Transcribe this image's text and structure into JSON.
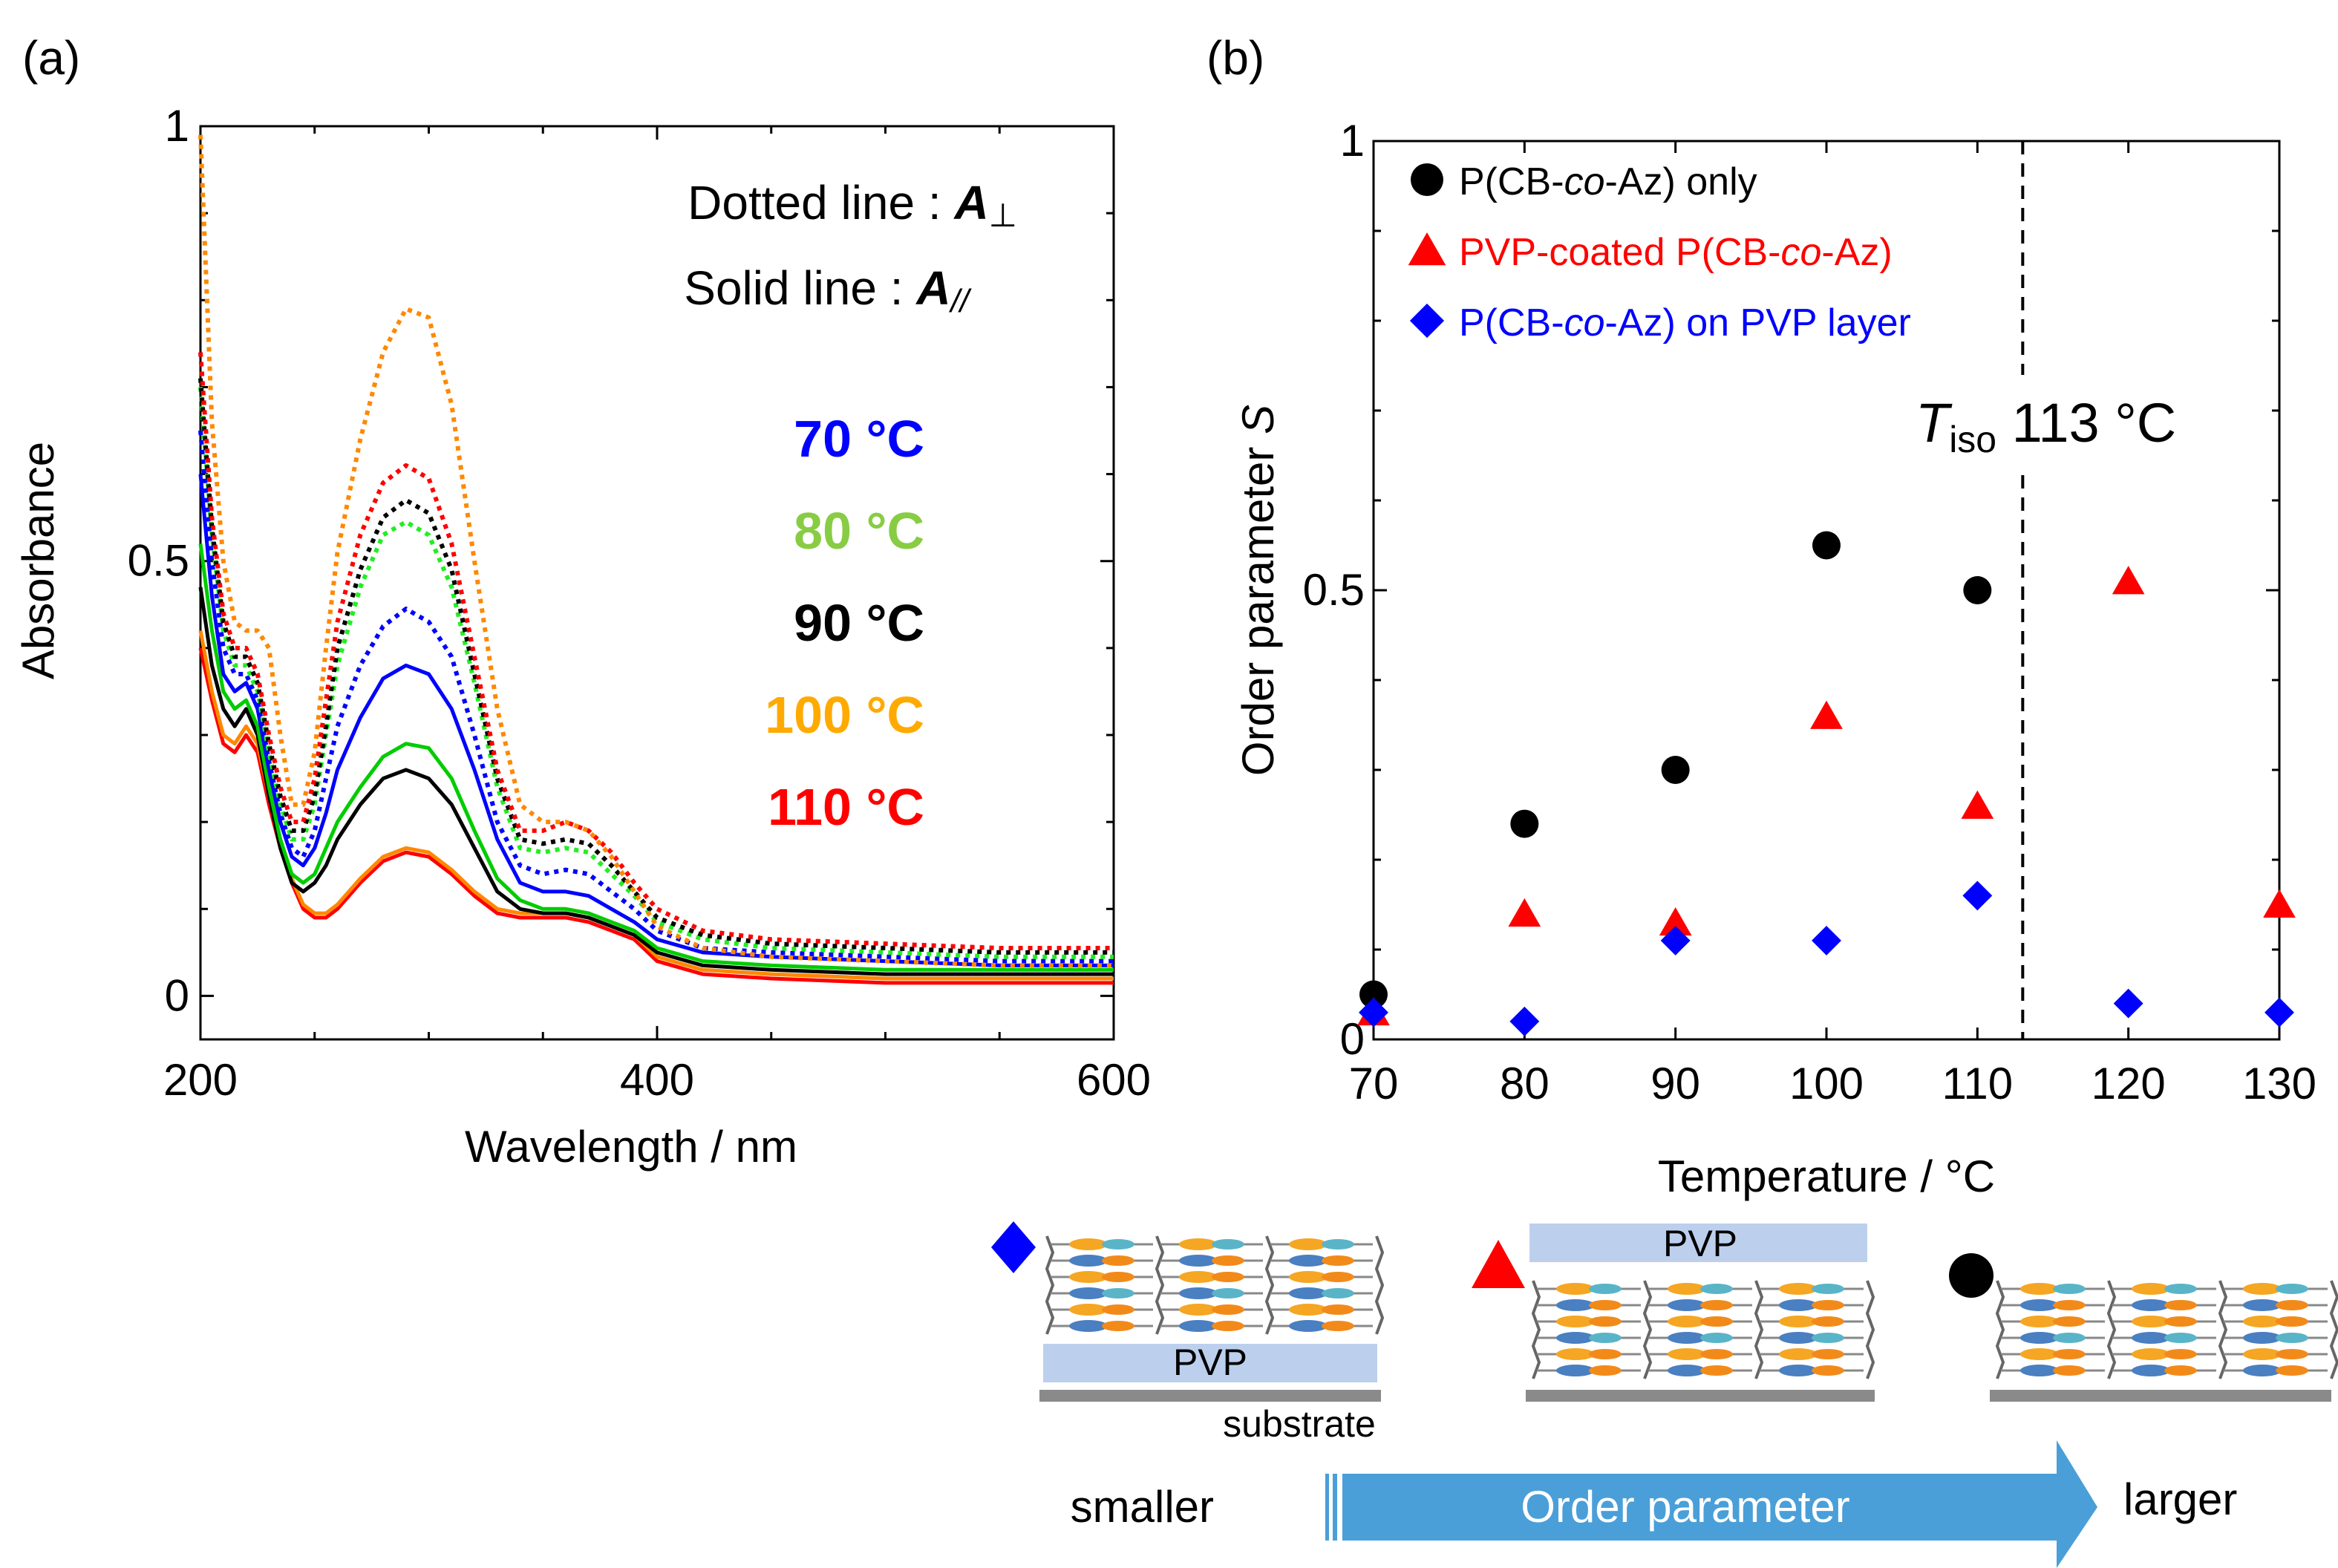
{
  "chart_data": [
    {
      "type": "line",
      "panel_label": "(a)",
      "xlabel": "Wavelength / nm",
      "ylabel": "Absorbance",
      "xlim": [
        200,
        600
      ],
      "ylim": [
        -0.05,
        1.0
      ],
      "x_ticks": [
        200,
        400,
        600
      ],
      "y_ticks": [
        0,
        0.5,
        1
      ],
      "x_tick_labels": [
        "200",
        "400",
        "600"
      ],
      "y_tick_labels": [
        "0",
        "0.5",
        "1"
      ],
      "annotation_lines": [
        "Dotted line : ",
        "A",
        "⊥",
        "Solid line : ",
        "A",
        "//"
      ],
      "legend_title_dotted": "Dotted line : A⊥",
      "legend_title_solid": "Solid line : A//",
      "legend_entries": [
        {
          "label": "70 °C",
          "color": "#0000ff"
        },
        {
          "label": "80 °C",
          "color": "#88cc44"
        },
        {
          "label": "90 °C",
          "color": "#000000"
        },
        {
          "label": "100 °C",
          "color": "#ffaa00"
        },
        {
          "label": "110 °C",
          "color": "#ff0000"
        }
      ],
      "x": [
        200,
        205,
        210,
        215,
        220,
        225,
        230,
        235,
        240,
        245,
        250,
        255,
        260,
        270,
        280,
        290,
        300,
        310,
        320,
        330,
        340,
        350,
        360,
        370,
        380,
        390,
        400,
        420,
        450,
        500,
        550,
        600
      ],
      "series": [
        {
          "name": "110 °C A//",
          "color": "#ff0000",
          "style": "solid",
          "values": [
            0.4,
            0.34,
            0.29,
            0.28,
            0.3,
            0.28,
            0.22,
            0.17,
            0.13,
            0.1,
            0.09,
            0.09,
            0.1,
            0.13,
            0.155,
            0.165,
            0.16,
            0.14,
            0.115,
            0.095,
            0.09,
            0.09,
            0.09,
            0.085,
            0.075,
            0.065,
            0.04,
            0.025,
            0.02,
            0.015,
            0.015,
            0.015
          ]
        },
        {
          "name": "100 °C A//",
          "color": "#ff8800",
          "style": "solid",
          "values": [
            0.42,
            0.35,
            0.3,
            0.29,
            0.31,
            0.29,
            0.23,
            0.18,
            0.135,
            0.105,
            0.095,
            0.095,
            0.105,
            0.135,
            0.16,
            0.17,
            0.165,
            0.145,
            0.12,
            0.1,
            0.095,
            0.095,
            0.095,
            0.09,
            0.08,
            0.07,
            0.045,
            0.03,
            0.025,
            0.02,
            0.02,
            0.02
          ]
        },
        {
          "name": "90 °C A//",
          "color": "#000000",
          "style": "solid",
          "values": [
            0.47,
            0.38,
            0.33,
            0.31,
            0.33,
            0.3,
            0.23,
            0.17,
            0.13,
            0.12,
            0.13,
            0.15,
            0.18,
            0.22,
            0.25,
            0.26,
            0.25,
            0.22,
            0.17,
            0.12,
            0.1,
            0.095,
            0.095,
            0.09,
            0.08,
            0.07,
            0.05,
            0.035,
            0.03,
            0.025,
            0.025,
            0.025
          ]
        },
        {
          "name": "80 °C A//",
          "color": "#00cc00",
          "style": "solid",
          "values": [
            0.52,
            0.42,
            0.35,
            0.33,
            0.34,
            0.31,
            0.24,
            0.18,
            0.14,
            0.13,
            0.14,
            0.17,
            0.2,
            0.24,
            0.275,
            0.29,
            0.285,
            0.25,
            0.19,
            0.135,
            0.11,
            0.1,
            0.1,
            0.095,
            0.085,
            0.075,
            0.055,
            0.04,
            0.035,
            0.03,
            0.03,
            0.03
          ]
        },
        {
          "name": "70 °C A//",
          "color": "#0000ff",
          "style": "solid",
          "values": [
            0.6,
            0.46,
            0.37,
            0.35,
            0.36,
            0.33,
            0.26,
            0.2,
            0.16,
            0.15,
            0.17,
            0.21,
            0.26,
            0.32,
            0.365,
            0.38,
            0.37,
            0.33,
            0.26,
            0.18,
            0.13,
            0.12,
            0.12,
            0.115,
            0.1,
            0.085,
            0.065,
            0.05,
            0.045,
            0.04,
            0.035,
            0.035
          ]
        },
        {
          "name": "70 °C A⊥",
          "color": "#0000ff",
          "style": "dotted",
          "values": [
            0.65,
            0.5,
            0.4,
            0.37,
            0.37,
            0.34,
            0.27,
            0.21,
            0.17,
            0.16,
            0.19,
            0.25,
            0.31,
            0.38,
            0.425,
            0.445,
            0.43,
            0.39,
            0.3,
            0.2,
            0.15,
            0.14,
            0.145,
            0.14,
            0.12,
            0.1,
            0.075,
            0.055,
            0.05,
            0.045,
            0.04,
            0.04
          ]
        },
        {
          "name": "80 °C A⊥",
          "color": "#22ee22",
          "style": "dotted",
          "values": [
            0.7,
            0.53,
            0.42,
            0.38,
            0.38,
            0.35,
            0.28,
            0.22,
            0.18,
            0.18,
            0.22,
            0.3,
            0.38,
            0.47,
            0.53,
            0.545,
            0.53,
            0.47,
            0.36,
            0.24,
            0.17,
            0.165,
            0.17,
            0.165,
            0.14,
            0.115,
            0.085,
            0.065,
            0.055,
            0.05,
            0.045,
            0.045
          ]
        },
        {
          "name": "90 °C A⊥",
          "color": "#000000",
          "style": "dotted",
          "values": [
            0.71,
            0.54,
            0.43,
            0.39,
            0.39,
            0.36,
            0.29,
            0.23,
            0.19,
            0.19,
            0.23,
            0.31,
            0.4,
            0.49,
            0.55,
            0.57,
            0.555,
            0.49,
            0.37,
            0.25,
            0.18,
            0.175,
            0.18,
            0.175,
            0.15,
            0.12,
            0.09,
            0.07,
            0.06,
            0.055,
            0.05,
            0.05
          ]
        },
        {
          "name": "110 °C A⊥",
          "color": "#ff0000",
          "style": "dotted",
          "values": [
            0.74,
            0.55,
            0.44,
            0.4,
            0.4,
            0.37,
            0.3,
            0.24,
            0.2,
            0.2,
            0.25,
            0.34,
            0.43,
            0.53,
            0.59,
            0.61,
            0.595,
            0.52,
            0.39,
            0.26,
            0.19,
            0.19,
            0.2,
            0.19,
            0.165,
            0.13,
            0.1,
            0.075,
            0.065,
            0.06,
            0.055,
            0.055
          ]
        },
        {
          "name": "100 °C A⊥",
          "color": "#ff8800",
          "style": "dotted",
          "values": [
            0.99,
            0.66,
            0.5,
            0.43,
            0.42,
            0.42,
            0.4,
            0.3,
            0.22,
            0.22,
            0.28,
            0.4,
            0.51,
            0.64,
            0.74,
            0.79,
            0.78,
            0.68,
            0.5,
            0.33,
            0.22,
            0.2,
            0.2,
            0.19,
            0.16,
            0.12,
            0.08,
            0.055,
            0.045,
            0.04,
            0.035,
            0.035
          ]
        }
      ]
    },
    {
      "type": "scatter",
      "panel_label": "(b)",
      "xlabel": "Temperature / °C",
      "ylabel_prefix": "Order parameter ",
      "ylabel_var": "S",
      "xlim": [
        70,
        130
      ],
      "ylim": [
        0,
        1
      ],
      "x_ticks": [
        70,
        80,
        90,
        100,
        110,
        120,
        130
      ],
      "y_ticks": [
        0,
        0.5,
        1
      ],
      "x_tick_labels": [
        "70",
        "80",
        "90",
        "100",
        "110",
        "120",
        "130"
      ],
      "y_tick_labels": [
        "0",
        "0.5",
        "1"
      ],
      "legend_entries": [
        {
          "parts": [
            "P(CB-",
            "co",
            "-Az) only"
          ],
          "color": "#000000",
          "marker": "circle"
        },
        {
          "parts": [
            "PVP-coated P(CB-",
            "co",
            "-Az)"
          ],
          "color": "#ff0000",
          "marker": "triangle"
        },
        {
          "parts": [
            "P(CB-",
            "co",
            "-Az) on PVP layer"
          ],
          "color": "#0000ff",
          "marker": "diamond"
        }
      ],
      "annotation": {
        "x": 113,
        "italic": "T",
        "sub": "iso",
        "text": " 113 °C"
      },
      "series": [
        {
          "name": "P(CB-co-Az) only",
          "marker": "circle",
          "color": "#000000",
          "x": [
            70,
            80,
            90,
            100,
            110
          ],
          "values": [
            0.05,
            0.24,
            0.3,
            0.55,
            0.5
          ]
        },
        {
          "name": "PVP-coated P(CB-co-Az)",
          "marker": "triangle",
          "color": "#ff0000",
          "x": [
            70,
            80,
            90,
            100,
            110,
            120,
            130
          ],
          "values": [
            0.03,
            0.14,
            0.13,
            0.36,
            0.26,
            0.51,
            0.15
          ]
        },
        {
          "name": "P(CB-co-Az) on PVP layer",
          "marker": "diamond",
          "color": "#0000ff",
          "x": [
            70,
            80,
            90,
            100,
            110,
            120,
            130
          ],
          "values": [
            0.03,
            0.02,
            0.11,
            0.11,
            0.16,
            0.04,
            0.03
          ]
        }
      ]
    }
  ],
  "schematic": {
    "pvp_label": "PVP",
    "substrate_label": "substrate",
    "arrow_text": "Order parameter",
    "smaller_label": "smaller",
    "larger_label": "larger"
  },
  "colors": {
    "arrow": "#4a9fd8",
    "pvp": "#bcd0ee",
    "substrate": "#8a8a8a"
  }
}
